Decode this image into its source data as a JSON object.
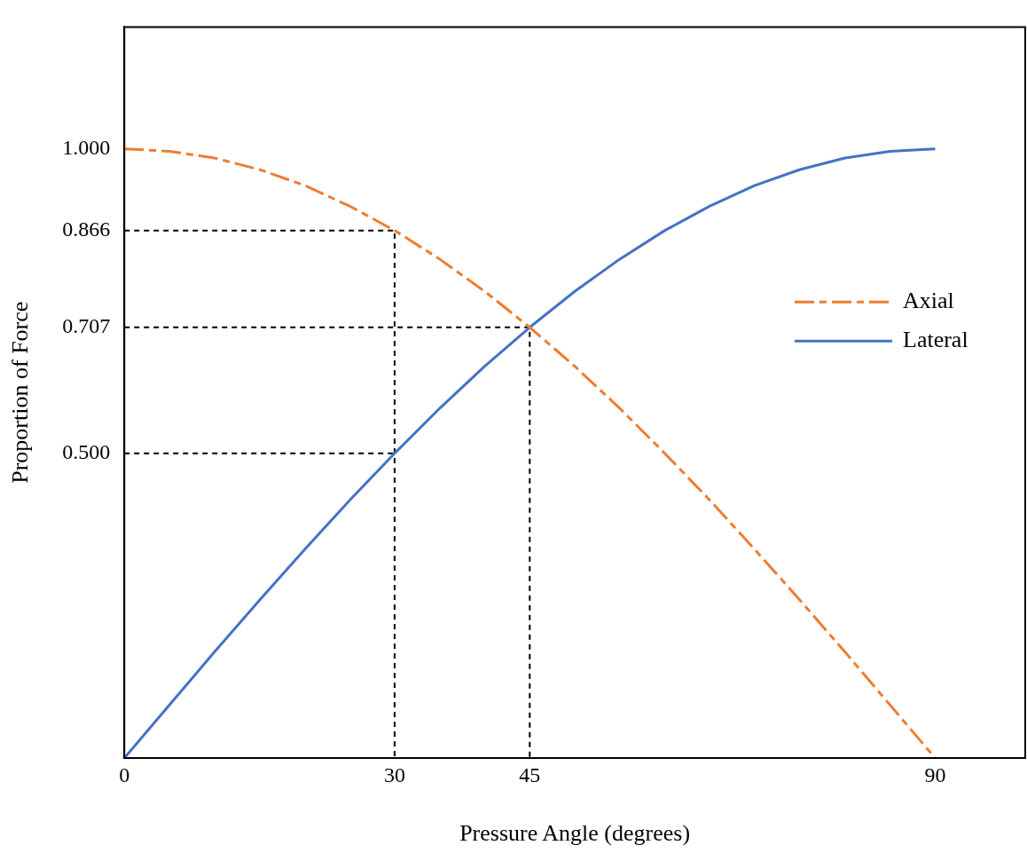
{
  "chart_data": {
    "type": "line",
    "xlabel": "Pressure Angle (degrees)",
    "ylabel": "Proportion of Force",
    "xlim": [
      0,
      100
    ],
    "ylim": [
      0,
      1.2
    ],
    "xticks": [
      0,
      30,
      45,
      90
    ],
    "yticks": [
      {
        "value": 0.5,
        "label": "0.500"
      },
      {
        "value": 0.707,
        "label": "0.707"
      },
      {
        "value": 0.866,
        "label": "0.866"
      },
      {
        "value": 1.0,
        "label": "1.000"
      }
    ],
    "grid": false,
    "legend": "right",
    "marker": "none",
    "series": [
      {
        "name": "Axial",
        "color": "#ed7d31",
        "line_style": "dashed",
        "x": [
          0,
          5,
          10,
          15,
          20,
          25,
          30,
          35,
          40,
          45,
          50,
          55,
          60,
          65,
          70,
          75,
          80,
          85,
          90
        ],
        "values": [
          1.0,
          0.996,
          0.985,
          0.966,
          0.94,
          0.906,
          0.866,
          0.819,
          0.766,
          0.707,
          0.643,
          0.574,
          0.5,
          0.423,
          0.342,
          0.259,
          0.174,
          0.087,
          0.0
        ]
      },
      {
        "name": "Lateral",
        "color": "#4472c4",
        "line_style": "solid",
        "x": [
          0,
          5,
          10,
          15,
          20,
          25,
          30,
          35,
          40,
          45,
          50,
          55,
          60,
          65,
          70,
          75,
          80,
          85,
          90
        ],
        "values": [
          0.0,
          0.087,
          0.174,
          0.259,
          0.342,
          0.423,
          0.5,
          0.574,
          0.643,
          0.707,
          0.766,
          0.819,
          0.866,
          0.906,
          0.94,
          0.966,
          0.985,
          0.996,
          1.0
        ]
      },
      {
        "color": "#000000",
        "line_style": "dotted",
        "x": [
          0,
          30,
          30
        ],
        "values": [
          0.866,
          0.866,
          0.0
        ]
      },
      {
        "color": "#000000",
        "line_style": "dotted",
        "x": [
          0,
          45,
          45
        ],
        "values": [
          0.707,
          0.707,
          0.0
        ]
      },
      {
        "color": "#000000",
        "line_style": "dotted",
        "x": [
          0,
          30
        ],
        "values": [
          0.5,
          0.5
        ]
      }
    ]
  }
}
